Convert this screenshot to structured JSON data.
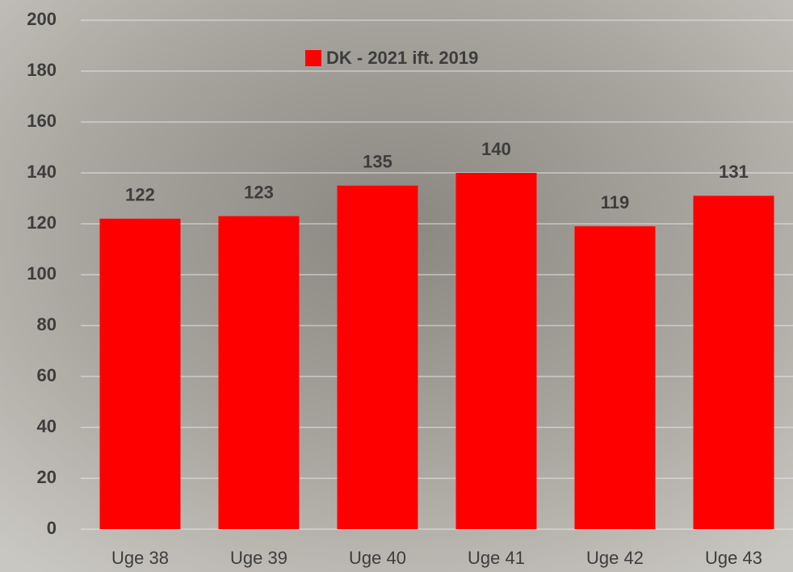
{
  "chart_data": {
    "type": "bar",
    "categories": [
      "Uge 38",
      "Uge 39",
      "Uge 40",
      "Uge 41",
      "Uge 42",
      "Uge 43"
    ],
    "series": [
      {
        "name": "DK - 2021 ift. 2019",
        "color": "#ff0000",
        "values": [
          122,
          123,
          135,
          140,
          119,
          131
        ]
      }
    ],
    "ylim": [
      0,
      200
    ],
    "yticks": [
      0,
      20,
      40,
      60,
      80,
      100,
      120,
      140,
      160,
      180,
      200
    ],
    "grid": true,
    "legend": "top",
    "data_labels": true
  }
}
